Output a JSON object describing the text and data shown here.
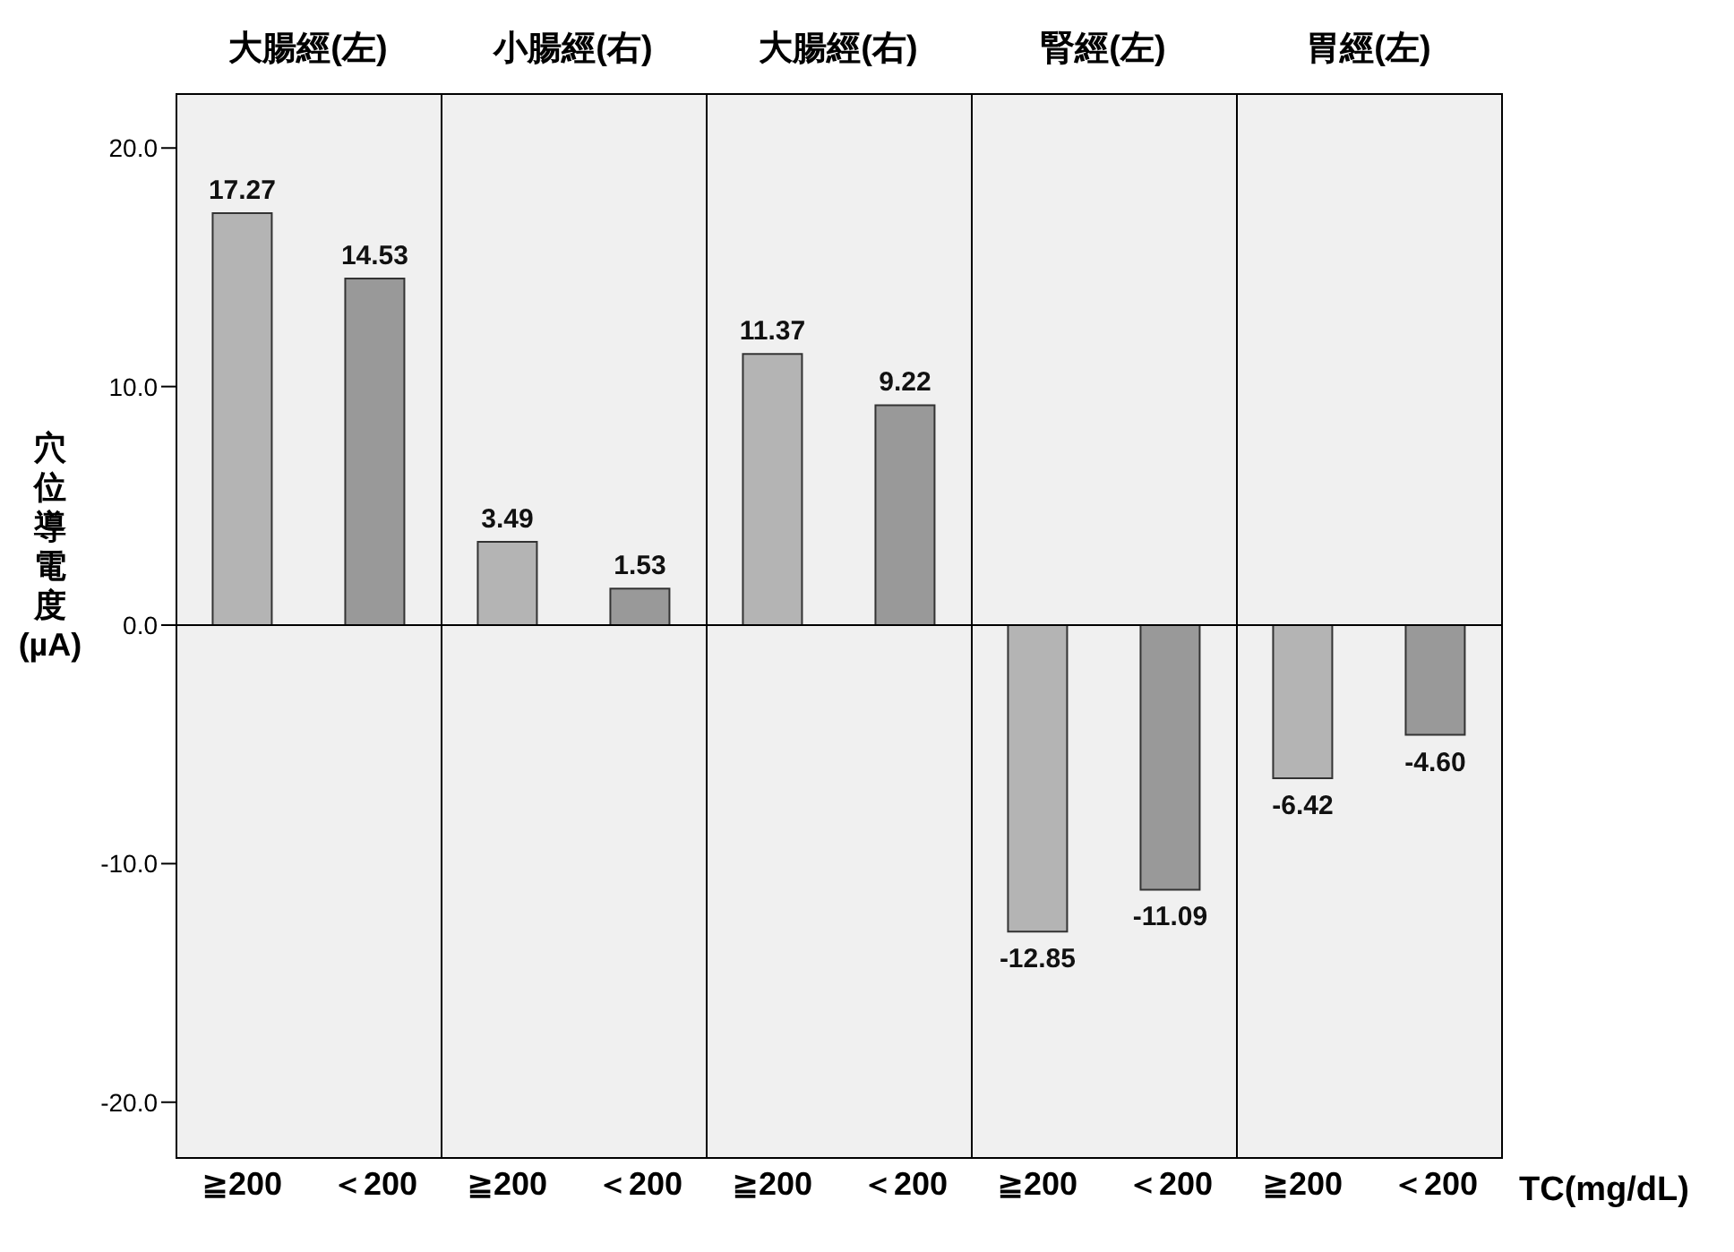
{
  "chart_data": [
    {
      "type": "bar",
      "title": "大腸經(左)",
      "ylabel": "穴位導電度(µA)",
      "categories": [
        "≧200",
        "＜200"
      ],
      "values": [
        17.27,
        14.53
      ],
      "value_labels": [
        "17.27",
        "14.53"
      ],
      "colors": [
        "#b4b4b4",
        "#999999"
      ],
      "ylim": [
        -22.3,
        22.3
      ],
      "yticks": [
        {
          "value": -20,
          "label": "-20.0"
        },
        {
          "value": -10,
          "label": "-10.0"
        },
        {
          "value": 0,
          "label": "0.0"
        },
        {
          "value": 10,
          "label": "10.0"
        },
        {
          "value": 20,
          "label": "20.0"
        }
      ],
      "ref_lines": [
        {
          "axis": "y",
          "value": 0
        }
      ],
      "grid": false,
      "legend": false
    },
    {
      "type": "bar",
      "title": "小腸經(右)",
      "categories": [
        "≧200",
        "＜200"
      ],
      "values": [
        3.49,
        1.53
      ],
      "value_labels": [
        "3.49",
        "1.53"
      ],
      "colors": [
        "#b4b4b4",
        "#999999"
      ],
      "ylim": [
        -22.3,
        22.3
      ],
      "ref_lines": [
        {
          "axis": "y",
          "value": 0
        }
      ],
      "tick_labels": "x",
      "grid": false,
      "legend": false
    },
    {
      "type": "bar",
      "title": "大腸經(右)",
      "categories": [
        "≧200",
        "＜200"
      ],
      "values": [
        11.37,
        9.22
      ],
      "value_labels": [
        "11.37",
        "9.22"
      ],
      "colors": [
        "#b4b4b4",
        "#999999"
      ],
      "ylim": [
        -22.3,
        22.3
      ],
      "ref_lines": [
        {
          "axis": "y",
          "value": 0
        }
      ],
      "tick_labels": "x",
      "grid": false,
      "legend": false
    },
    {
      "type": "bar",
      "title": "腎經(左)",
      "categories": [
        "≧200",
        "＜200"
      ],
      "values": [
        -12.85,
        -11.09
      ],
      "value_labels": [
        "-12.85",
        "-11.09"
      ],
      "colors": [
        "#b4b4b4",
        "#999999"
      ],
      "ylim": [
        -22.3,
        22.3
      ],
      "ref_lines": [
        {
          "axis": "y",
          "value": 0
        }
      ],
      "tick_labels": "x",
      "grid": false,
      "legend": false
    },
    {
      "type": "bar",
      "title": "胃經(左)",
      "xlabel": "TC(mg/dL)",
      "categories": [
        "≧200",
        "＜200"
      ],
      "values": [
        -6.42,
        -4.6
      ],
      "value_labels": [
        "-6.42",
        "-4.60"
      ],
      "colors": [
        "#b4b4b4",
        "#999999"
      ],
      "ylim": [
        -22.3,
        22.3
      ],
      "ref_lines": [
        {
          "axis": "y",
          "value": 0
        }
      ],
      "tick_labels": "x",
      "grid": false,
      "legend": false
    }
  ]
}
